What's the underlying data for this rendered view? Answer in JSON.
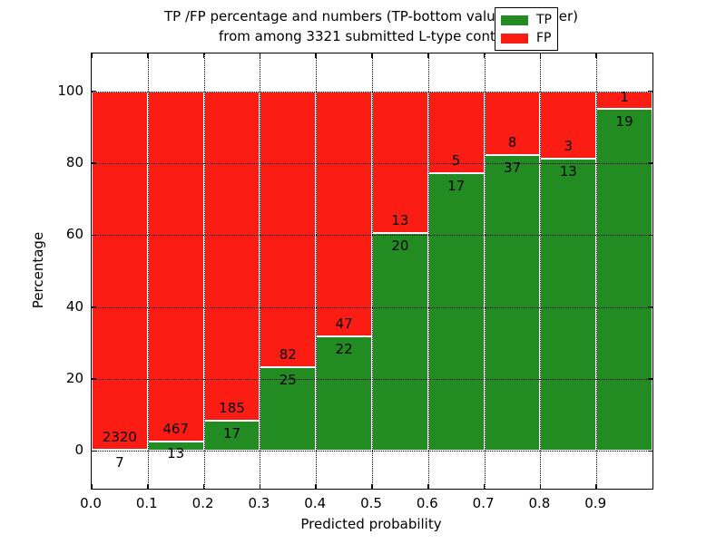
{
  "title": {
    "line1": "TP /FP percentage and numbers (TP-bottom value, FP-upper)",
    "line2": "from among 3321 submitted L-type contacts"
  },
  "axes": {
    "xlabel": "Predicted probability",
    "ylabel": "Percentage",
    "x_tick_labels": [
      "0.0",
      "0.1",
      "0.2",
      "0.3",
      "0.4",
      "0.5",
      "0.6",
      "0.7",
      "0.8",
      "0.9"
    ],
    "y_tick_labels": [
      "0",
      "20",
      "40",
      "60",
      "80",
      "100"
    ],
    "y_tick_values": [
      0,
      20,
      40,
      60,
      80,
      100
    ],
    "grid": "dotted"
  },
  "legend": {
    "items": [
      {
        "label": "TP",
        "color": "#228b22"
      },
      {
        "label": "FP",
        "color": "#fb1c13"
      }
    ],
    "position": "upper-right"
  },
  "colors": {
    "tp": "#228b22",
    "fp": "#fb1c13",
    "bar_edge": "#ffffff",
    "text": "#000000",
    "background": "#ffffff"
  },
  "chart_data": {
    "type": "bar",
    "stacked": true,
    "total_contacts": 3321,
    "categories": [
      "0.0",
      "0.1",
      "0.2",
      "0.3",
      "0.4",
      "0.5",
      "0.6",
      "0.7",
      "0.8",
      "0.9"
    ],
    "bin_width": 0.1,
    "series": [
      {
        "name": "TP",
        "counts": [
          7,
          13,
          17,
          25,
          22,
          20,
          17,
          37,
          13,
          19
        ]
      },
      {
        "name": "FP",
        "counts": [
          2320,
          467,
          185,
          82,
          47,
          13,
          5,
          8,
          3,
          1
        ]
      }
    ],
    "tp_percent": [
      0.3,
      2.71,
      8.42,
      23.36,
      31.88,
      60.61,
      77.27,
      82.22,
      81.25,
      95.0
    ],
    "fp_percent": [
      99.7,
      97.29,
      91.58,
      76.64,
      68.12,
      39.39,
      22.73,
      17.78,
      18.75,
      5.0
    ],
    "fp_label_hidden_behind_legend_index": 9,
    "title": "TP /FP percentage and numbers (TP-bottom value, FP-upper) from among 3321 submitted L-type contacts",
    "xlabel": "Predicted probability",
    "ylabel": "Percentage",
    "xlim": [
      0.0,
      1.0
    ],
    "ylim": [
      -10.5,
      110.5
    ],
    "legend_position": "upper right",
    "grid": true
  }
}
